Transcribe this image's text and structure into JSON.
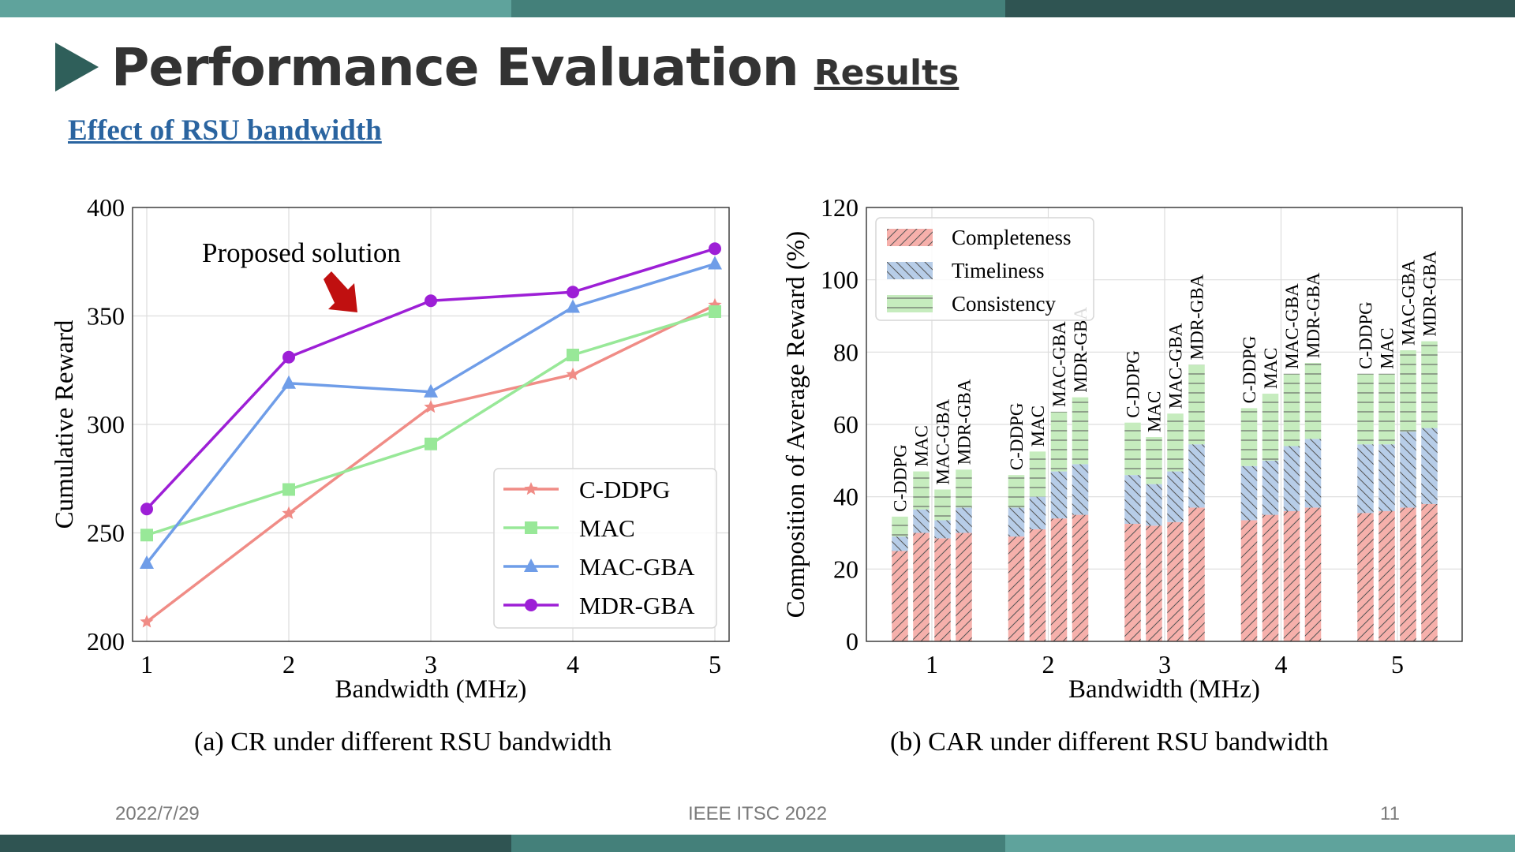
{
  "slide": {
    "title": "Performance Evaluation",
    "title_suffix": "Results",
    "subtitle": "Effect of RSU bandwidth",
    "caption_a": "(a) CR under different RSU bandwidth",
    "caption_b": "(b) CAR under different RSU bandwidth",
    "footer_date": "2022/7/29",
    "footer_conf": "IEEE ITSC 2022",
    "footer_page": "11",
    "colors": {
      "teal_light": "#5fa39c",
      "teal_mid": "#44807a",
      "teal_dark": "#2f5452",
      "title": "#333333",
      "link": "#2a64a0"
    }
  },
  "chart_data": [
    {
      "type": "line",
      "xlabel": "Bandwidth (MHz)",
      "ylabel": "Cumulative Reward",
      "x": [
        1,
        2,
        3,
        4,
        5
      ],
      "xlim": [
        0.9,
        5.1
      ],
      "ylim": [
        200,
        400
      ],
      "yticks": [
        200,
        250,
        300,
        350,
        400
      ],
      "grid": true,
      "legend_position": "bottom-right",
      "annotation": "Proposed solution",
      "series": [
        {
          "name": "C-DDPG",
          "color": "#f08c86",
          "marker": "star",
          "values": [
            209,
            259,
            308,
            323,
            355
          ]
        },
        {
          "name": "MAC",
          "color": "#98e898",
          "marker": "square",
          "values": [
            249,
            270,
            291,
            332,
            352
          ]
        },
        {
          "name": "MAC-GBA",
          "color": "#6f9de8",
          "marker": "triangle",
          "values": [
            236,
            319,
            315,
            354,
            374
          ]
        },
        {
          "name": "MDR-GBA",
          "color": "#9d1fd6",
          "marker": "circle",
          "values": [
            261,
            331,
            357,
            361,
            381
          ]
        }
      ]
    },
    {
      "type": "bar",
      "stacked": true,
      "xlabel": "Bandwidth (MHz)",
      "ylabel": "Composition of Average Reward (%)",
      "categories": [
        "1",
        "2",
        "3",
        "4",
        "5"
      ],
      "methods": [
        "C-DDPG",
        "MAC",
        "MAC-GBA",
        "MDR-GBA"
      ],
      "ylim": [
        0,
        120
      ],
      "yticks": [
        0,
        20,
        40,
        60,
        80,
        100,
        120
      ],
      "grid": true,
      "legend_position": "top-left",
      "series": [
        {
          "name": "Completeness",
          "color": "#f6b0ab",
          "hatch": "/",
          "values": [
            [
              25,
              30,
              28.5,
              30
            ],
            [
              29,
              31,
              34,
              35
            ],
            [
              32.5,
              32,
              33,
              37
            ],
            [
              33.5,
              35,
              36,
              37
            ],
            [
              35.5,
              36,
              37,
              38
            ]
          ]
        },
        {
          "name": "Timeliness",
          "color": "#b7cde8",
          "hatch": "\\",
          "values": [
            [
              4,
              6.5,
              5,
              7
            ],
            [
              8,
              9,
              13,
              14
            ],
            [
              13.5,
              11.5,
              14,
              17.5
            ],
            [
              15,
              15,
              18,
              19
            ],
            [
              19,
              18.5,
              21,
              21
            ]
          ]
        },
        {
          "name": "Consistency",
          "color": "#c6ecbe",
          "hatch": "-",
          "values": [
            [
              5.5,
              10.5,
              8.5,
              10.5
            ],
            [
              9,
              12.5,
              16.5,
              18.5
            ],
            [
              14.5,
              13,
              16,
              22
            ],
            [
              16,
              18.5,
              20,
              21
            ],
            [
              19.5,
              19.5,
              22.5,
              24
            ]
          ]
        }
      ]
    }
  ]
}
